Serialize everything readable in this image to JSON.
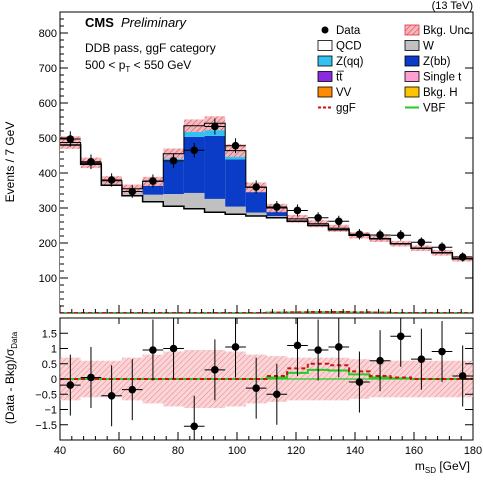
{
  "chart_data": [
    {
      "type": "bar",
      "panel": "main",
      "header_right": "(13 TeV)",
      "cms_label": "CMS",
      "cms_sublabel": "Preliminary",
      "annotations": [
        "DDB pass, ggF category",
        "500 < p",
        "T",
        " < 550 GeV"
      ],
      "ylabel": "Events / 7 GeV",
      "ylim": [
        0,
        860
      ],
      "yticks": [
        100,
        200,
        300,
        400,
        500,
        600,
        700,
        800
      ],
      "x_bin_edges": [
        40,
        47,
        54,
        61,
        68,
        75,
        82,
        89,
        96,
        103,
        110,
        117,
        124,
        131,
        138,
        145,
        152,
        159,
        166,
        173,
        180
      ],
      "legend": [
        {
          "label": "Data",
          "symbol": "marker",
          "color": "#000000"
        },
        {
          "label": "Bkg. Unc.",
          "symbol": "hatch",
          "color": "#e8707a"
        },
        {
          "label": "QCD",
          "symbol": "box",
          "color": "#ffffff"
        },
        {
          "label": "W",
          "symbol": "box",
          "color": "#c0c0c0"
        },
        {
          "label": "Z(qq)",
          "symbol": "box",
          "color": "#33c2f0"
        },
        {
          "label": "Z(bb)",
          "symbol": "box",
          "color": "#0b3cc7"
        },
        {
          "label": "tt̅",
          "symbol": "box",
          "color": "#8a2be2"
        },
        {
          "label": "Single t",
          "symbol": "box",
          "color": "#ff9ed2"
        },
        {
          "label": "VV",
          "symbol": "box",
          "color": "#ff8c00"
        },
        {
          "label": "Bkg. H",
          "symbol": "box",
          "color": "#ffc400"
        },
        {
          "label": "ggF",
          "symbol": "dash",
          "color": "#d01010"
        },
        {
          "label": "VBF",
          "symbol": "line",
          "color": "#22cc22"
        }
      ],
      "series": [
        {
          "name": "QCD",
          "color": "#ffffff",
          "values": [
            480,
            425,
            365,
            335,
            318,
            305,
            298,
            288,
            282,
            277,
            272,
            262,
            250,
            238,
            222,
            212,
            198,
            185,
            172,
            155
          ]
        },
        {
          "name": "W",
          "values": [
            0,
            0,
            5,
            10,
            20,
            35,
            45,
            38,
            22,
            10,
            5,
            0,
            0,
            0,
            0,
            0,
            0,
            0,
            0,
            0
          ],
          "color": "#c0c0c0"
        },
        {
          "name": "Z(bb)",
          "values": [
            5,
            2,
            5,
            5,
            30,
            95,
            160,
            180,
            135,
            60,
            18,
            5,
            3,
            2,
            0,
            0,
            0,
            0,
            0,
            0
          ],
          "color": "#0b3cc7"
        },
        {
          "name": "Z(qq)",
          "values": [
            2,
            2,
            3,
            5,
            8,
            20,
            32,
            36,
            25,
            12,
            5,
            2,
            2,
            2,
            0,
            0,
            0,
            0,
            0,
            0
          ],
          "color": "#33c2f0"
        }
      ],
      "unc_band": [
        18,
        15,
        13,
        12,
        13,
        15,
        18,
        20,
        18,
        14,
        12,
        11,
        10,
        10,
        9,
        9,
        8,
        8,
        8,
        8
      ],
      "data_points": {
        "x": [
          43.5,
          50.5,
          57.5,
          64.5,
          71.5,
          78.5,
          85.5,
          92.5,
          99.5,
          106.5,
          113.5,
          120.5,
          127.5,
          134.5,
          141.5,
          148.5,
          155.5,
          162.5,
          169.5,
          176.5
        ],
        "y": [
          497,
          432,
          380,
          347,
          377,
          435,
          465,
          533,
          478,
          360,
          303,
          293,
          272,
          262,
          225,
          223,
          222,
          202,
          188,
          160
        ],
        "yerr": [
          22,
          21,
          19,
          18,
          19,
          21,
          21,
          23,
          21,
          19,
          17,
          17,
          16,
          16,
          15,
          15,
          15,
          14,
          14,
          13
        ]
      },
      "ggF": [
        0,
        0,
        0,
        0,
        0,
        0,
        0,
        0,
        0,
        0,
        1,
        2,
        3,
        3,
        2,
        1,
        0,
        0,
        0,
        0
      ],
      "VBF": [
        0,
        0,
        0,
        0,
        0,
        0,
        0,
        0,
        0,
        0,
        1,
        1,
        2,
        2,
        1,
        1,
        0,
        0,
        0,
        0
      ]
    },
    {
      "type": "scatter",
      "panel": "ratio",
      "ylabel_main": "(Data - Bkg)/σ",
      "ylabel_sub": "Data",
      "xlabel_main": "m",
      "xlabel_sub": "SD",
      "xlabel_unit": " [GeV]",
      "xlim": [
        40,
        180
      ],
      "xticks": [
        40,
        60,
        80,
        100,
        120,
        140,
        160,
        180
      ],
      "ylim": [
        -2,
        2
      ],
      "yticks": [
        -1.5,
        -1,
        -0.5,
        0,
        0.5,
        1,
        1.5
      ],
      "ytick_labels": [
        "−1.5",
        "−1",
        "−0.5",
        "0",
        "0.5",
        "1",
        "1.5"
      ],
      "x": [
        43.5,
        50.5,
        57.5,
        64.5,
        71.5,
        78.5,
        85.5,
        92.5,
        99.5,
        106.5,
        113.5,
        120.5,
        127.5,
        134.5,
        141.5,
        148.5,
        155.5,
        162.5,
        169.5,
        176.5
      ],
      "y": [
        -0.2,
        0.05,
        -0.55,
        -0.35,
        0.95,
        1.0,
        -1.55,
        0.3,
        1.05,
        -0.3,
        -0.5,
        1.1,
        0.95,
        1.05,
        -0.1,
        0.6,
        1.4,
        0.65,
        0.9,
        0.1
      ],
      "yerr": [
        1,
        1,
        1,
        1,
        1,
        1,
        1,
        1,
        1,
        1,
        1,
        1,
        1,
        1,
        1,
        1,
        1,
        1,
        1,
        1
      ],
      "unc_band": [
        0.7,
        0.6,
        0.6,
        0.7,
        0.8,
        0.9,
        0.95,
        0.95,
        0.9,
        0.8,
        0.75,
        0.7,
        0.7,
        0.7,
        0.65,
        0.6,
        0.6,
        0.6,
        0.6,
        0.6
      ],
      "ggF": [
        0,
        0,
        0,
        0,
        0,
        0,
        0,
        0,
        0,
        0,
        0.1,
        0.35,
        0.5,
        0.45,
        0.25,
        0.1,
        0.05,
        0,
        0,
        0
      ],
      "VBF": [
        0,
        0,
        0,
        0,
        0,
        0,
        0,
        0,
        0,
        0,
        0.05,
        0.2,
        0.3,
        0.28,
        0.15,
        0.05,
        0.02,
        0,
        0,
        0
      ]
    }
  ]
}
